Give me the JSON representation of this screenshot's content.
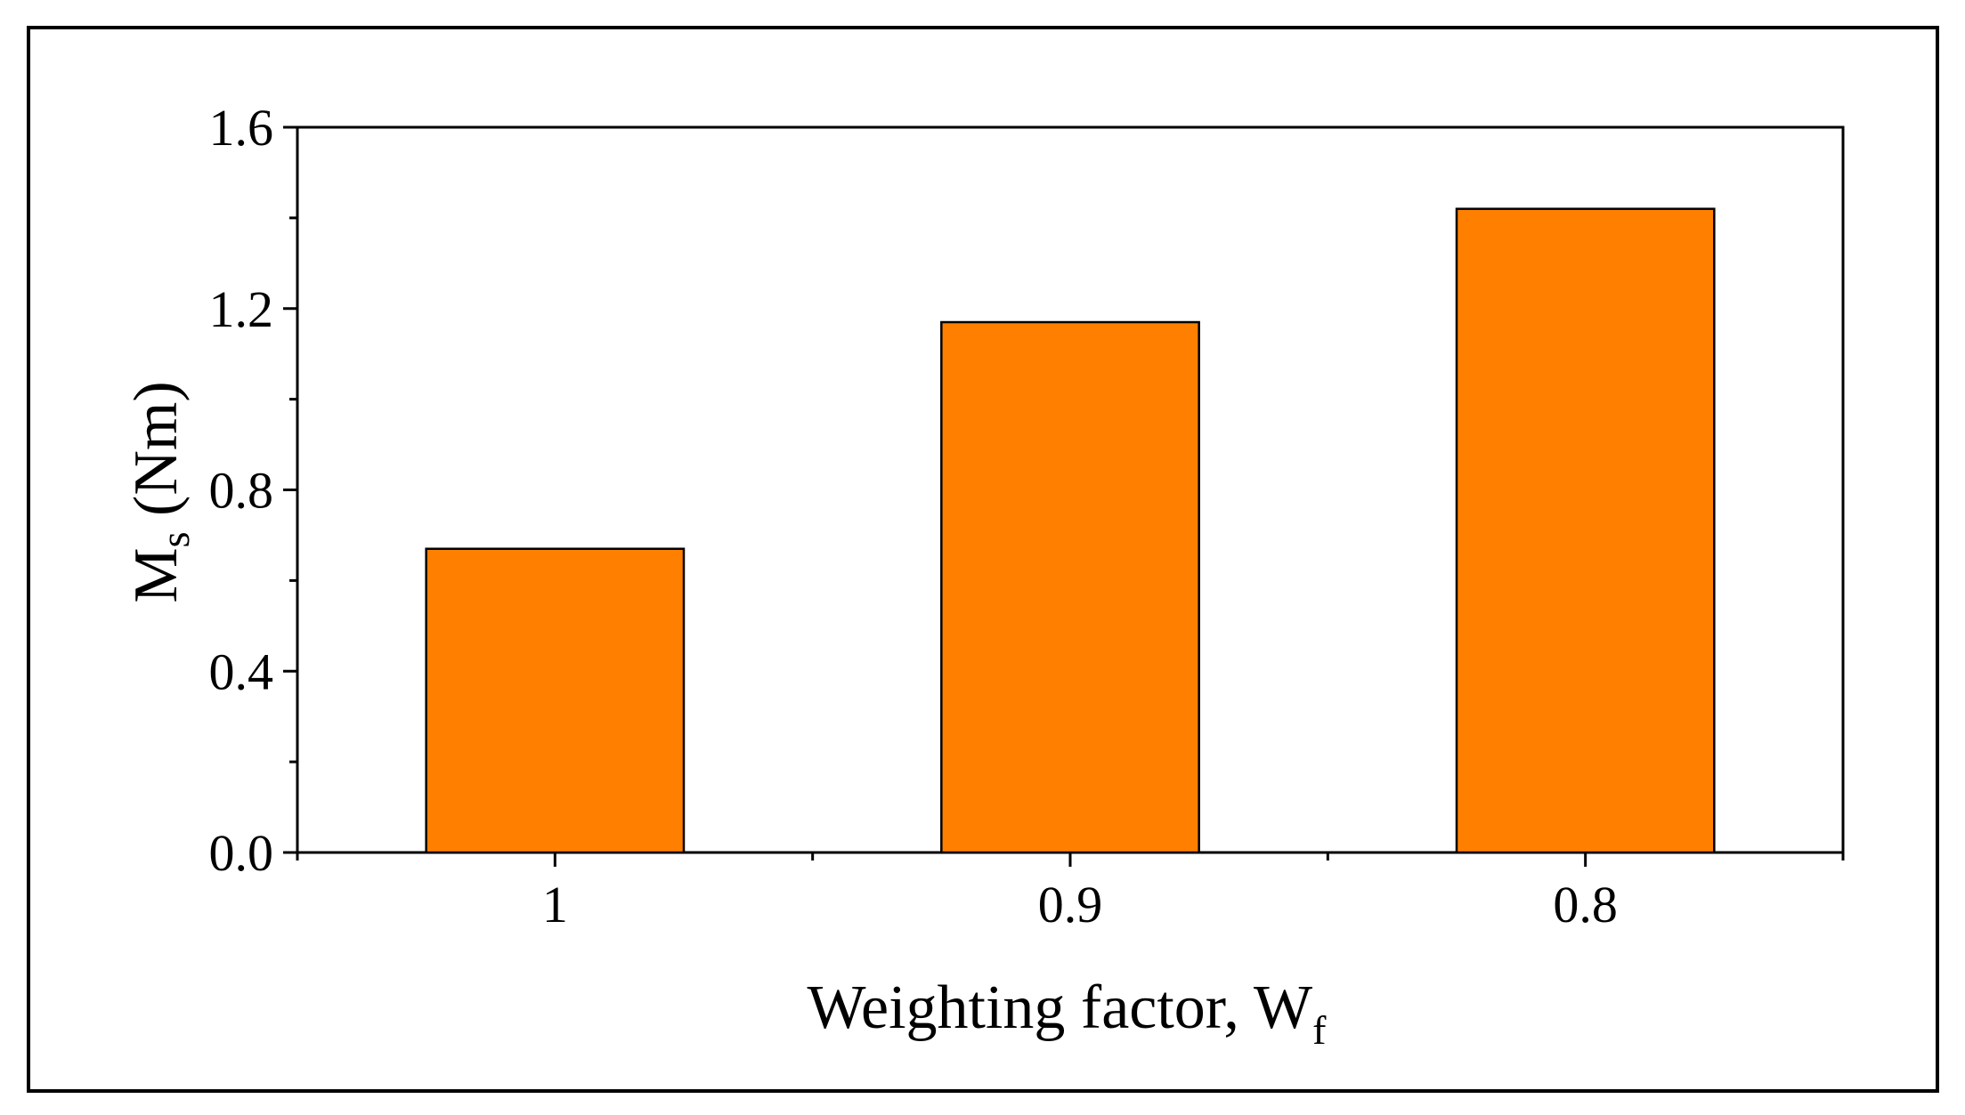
{
  "chart_data": {
    "type": "bar",
    "categories": [
      "1",
      "0.9",
      "0.8"
    ],
    "values": [
      0.67,
      1.17,
      1.42
    ],
    "xlabel": {
      "main": "Weighting factor, W",
      "sub": "f"
    },
    "ylabel": {
      "main": "M",
      "sub": "s",
      "unit": " (Nm)"
    },
    "ylim": [
      0,
      1.6
    ],
    "yticks": [
      "0.0",
      "0.4",
      "0.8",
      "1.2",
      "1.6"
    ],
    "bar_color": "#FF8000",
    "grid": false,
    "legend": "none"
  }
}
